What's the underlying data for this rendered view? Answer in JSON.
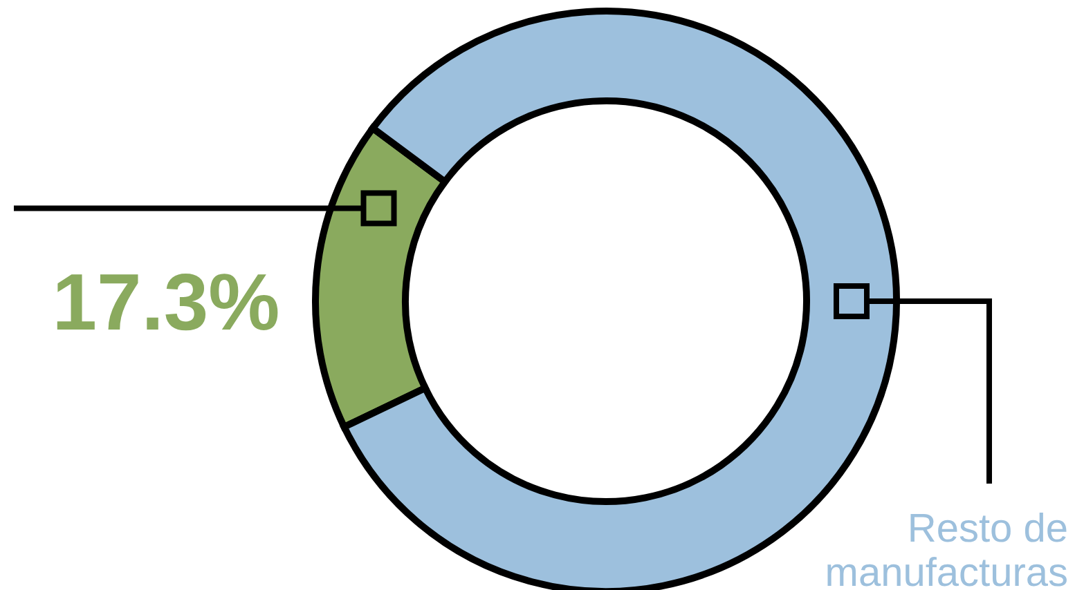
{
  "chart_data": {
    "type": "donut",
    "categories": [
      null,
      "Resto de manufacturas"
    ],
    "values": [
      17.3,
      82.7
    ],
    "colors": [
      "#8aaa5e",
      "#9dc0dd"
    ],
    "value_labels": [
      "17.3%",
      null
    ]
  }
}
